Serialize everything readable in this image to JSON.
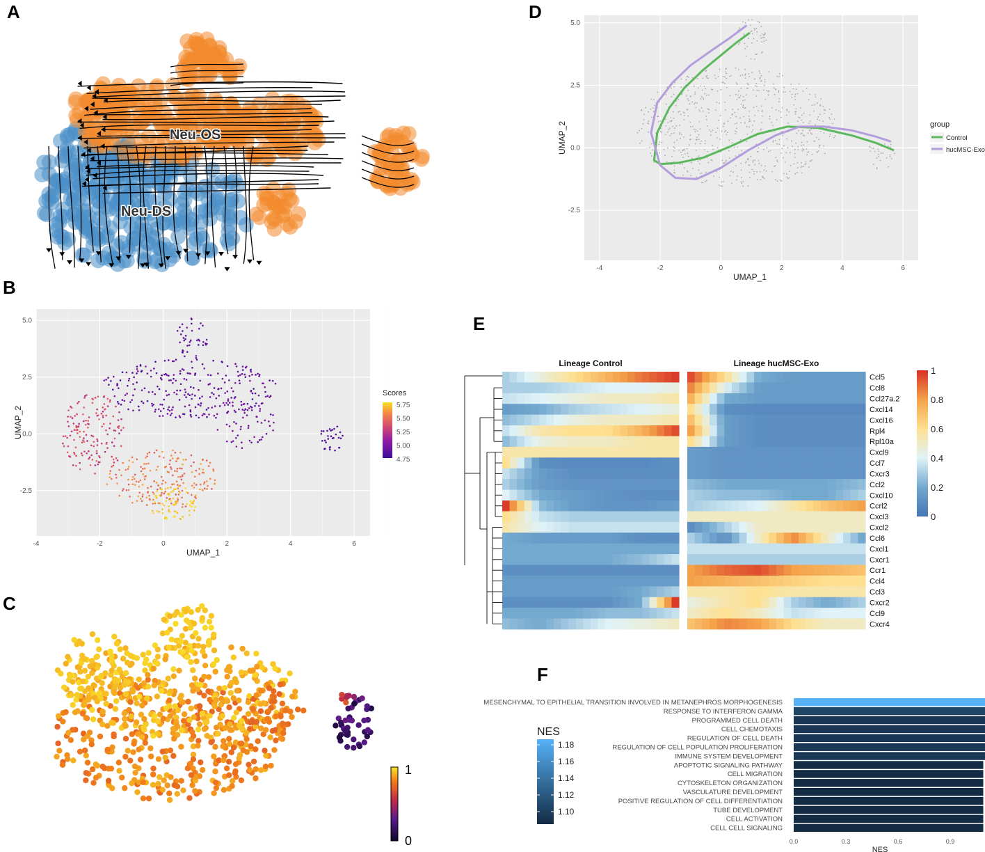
{
  "panel_labels": [
    "A",
    "B",
    "C",
    "D",
    "E",
    "F"
  ],
  "chart_data": [
    {
      "panel": "A",
      "type": "scatter",
      "title": "",
      "annotations": [
        "Neu-OS",
        "Neu-DS"
      ],
      "colors": {
        "Neu-OS": "#f28a2e",
        "Neu-DS": "#4a90c8"
      }
    },
    {
      "panel": "B",
      "type": "scatter",
      "xlabel": "UMAP_1",
      "ylabel": "UMAP_2",
      "xlim": [
        -4,
        6.5
      ],
      "ylim": [
        -4.5,
        5.5
      ],
      "xticks": [
        "-4",
        "-2",
        "0",
        "2",
        "4",
        "6"
      ],
      "yticks": [
        "5.0",
        "2.5",
        "0.0",
        "-2.5"
      ],
      "legend_title": "Scores",
      "legend_ticks": [
        "5.75",
        "5.50",
        "5.25",
        "5.00",
        "4.75"
      ],
      "score_range": [
        4.75,
        5.75
      ]
    },
    {
      "panel": "C",
      "type": "scatter",
      "colorbar_ticks": [
        "1",
        "0"
      ],
      "value_range": [
        0,
        1
      ]
    },
    {
      "panel": "D",
      "type": "line",
      "xlabel": "UMAP_1",
      "ylabel": "UMAP_2",
      "xlim": [
        -4.5,
        6.5
      ],
      "ylim": [
        -4.5,
        5.3
      ],
      "xticks": [
        "-4",
        "-2",
        "0",
        "2",
        "4",
        "6"
      ],
      "yticks": [
        "5.0",
        "2.5",
        "0.0",
        "-2.5"
      ],
      "legend_title": "group",
      "series": [
        {
          "name": "Control",
          "color": "#5cb85c",
          "x": [
            0.95,
            0.5,
            0,
            -0.6,
            -1.2,
            -1.7,
            -2.1,
            -2.2,
            -2.0,
            -1.4,
            -0.6,
            0.3,
            1.2,
            2.2,
            3.2,
            4.3,
            5.1,
            5.7
          ],
          "y": [
            4.6,
            4.2,
            3.7,
            3.1,
            2.4,
            1.6,
            0.6,
            -0.5,
            -0.65,
            -0.6,
            -0.4,
            0.05,
            0.55,
            0.85,
            0.8,
            0.5,
            0.2,
            -0.1
          ]
        },
        {
          "name": "hucMSC-Exo",
          "color": "#b39ddb",
          "x": [
            0.85,
            0.3,
            -0.3,
            -1.0,
            -1.6,
            -2.1,
            -2.3,
            -2.0,
            -1.5,
            -0.8,
            0,
            0.9,
            1.8,
            2.6,
            3.4,
            4.3,
            5.1,
            5.6
          ],
          "y": [
            4.9,
            4.4,
            3.9,
            3.3,
            2.6,
            1.8,
            0.6,
            -0.7,
            -1.2,
            -1.25,
            -0.8,
            -0.1,
            0.5,
            0.85,
            0.85,
            0.7,
            0.45,
            0.25
          ]
        }
      ]
    },
    {
      "panel": "E",
      "type": "heatmap",
      "column_groups": [
        "Lineage  Control",
        "Lineage  hucMSC-Exo"
      ],
      "rows": [
        "Ccl5",
        "Ccl8",
        "Ccl27a.2",
        "Cxcl14",
        "Cxcl16",
        "Rpl4",
        "Rpl10a",
        "Cxcl9",
        "Ccl7",
        "Cxcr3",
        "Ccl2",
        "Cxcl10",
        "Ccrl2",
        "Cxcl3",
        "Cxcl2",
        "Ccl6",
        "Cxcl1",
        "Cxcr1",
        "Ccr1",
        "Ccl4",
        "Ccl3",
        "Cxcr2",
        "Ccl9",
        "Cxcr4"
      ],
      "colorbar_ticks": [
        "1",
        "0.8",
        "0.6",
        "0.4",
        "0.2",
        "0"
      ],
      "value_range": [
        0,
        1
      ],
      "control": [
        [
          0.3,
          0.45,
          0.6,
          0.75,
          0.88,
          0.98
        ],
        [
          0.3,
          0.3,
          0.35,
          0.4,
          0.4,
          0.45
        ],
        [
          0.35,
          0.4,
          0.45,
          0.5,
          0.5,
          0.55
        ],
        [
          0.15,
          0.2,
          0.3,
          0.35,
          0.4,
          0.45
        ],
        [
          0.25,
          0.35,
          0.45,
          0.5,
          0.5,
          0.55
        ],
        [
          0.35,
          0.55,
          0.6,
          0.6,
          0.75,
          0.95
        ],
        [
          0.25,
          0.45,
          0.5,
          0.5,
          0.55,
          0.55
        ],
        [
          0.55,
          0.55,
          0.55,
          0.55,
          0.55,
          0.55
        ],
        [
          0.6,
          0.1,
          0.08,
          0.08,
          0.08,
          0.1
        ],
        [
          0.35,
          0.15,
          0.1,
          0.1,
          0.1,
          0.1
        ],
        [
          0.3,
          0.15,
          0.12,
          0.12,
          0.12,
          0.12
        ],
        [
          0.4,
          0.2,
          0.15,
          0.12,
          0.1,
          0.1
        ],
        [
          0.98,
          0.25,
          0.15,
          0.12,
          0.12,
          0.15
        ],
        [
          0.6,
          0.35,
          0.3,
          0.3,
          0.3,
          0.3
        ],
        [
          0.55,
          0.4,
          0.35,
          0.35,
          0.35,
          0.35
        ],
        [
          0.2,
          0.15,
          0.15,
          0.15,
          0.1,
          0.1
        ],
        [
          0.2,
          0.2,
          0.2,
          0.2,
          0.2,
          0.2
        ],
        [
          0.2,
          0.2,
          0.2,
          0.2,
          0.25,
          0.35
        ],
        [
          0.1,
          0.1,
          0.1,
          0.1,
          0.1,
          0.1
        ],
        [
          0.15,
          0.15,
          0.15,
          0.15,
          0.15,
          0.15
        ],
        [
          0.15,
          0.15,
          0.15,
          0.15,
          0.2,
          0.3
        ],
        [
          0.1,
          0.1,
          0.1,
          0.1,
          0.2,
          0.98
        ],
        [
          0.2,
          0.2,
          0.2,
          0.25,
          0.25,
          0.35
        ],
        [
          0.25,
          0.2,
          0.3,
          0.4,
          0.45,
          0.5
        ]
      ],
      "treatment": [
        [
          0.95,
          0.6,
          0.2,
          0.15,
          0.15,
          0.15
        ],
        [
          0.85,
          0.4,
          0.15,
          0.15,
          0.15,
          0.15
        ],
        [
          0.75,
          0.2,
          0.15,
          0.15,
          0.15,
          0.15
        ],
        [
          0.6,
          0.1,
          0.08,
          0.08,
          0.08,
          0.08
        ],
        [
          0.7,
          0.15,
          0.1,
          0.1,
          0.1,
          0.1
        ],
        [
          0.8,
          0.15,
          0.1,
          0.1,
          0.1,
          0.1
        ],
        [
          0.6,
          0.15,
          0.1,
          0.1,
          0.1,
          0.1
        ],
        [
          0.15,
          0.12,
          0.12,
          0.12,
          0.12,
          0.12
        ],
        [
          0.15,
          0.12,
          0.12,
          0.12,
          0.12,
          0.12
        ],
        [
          0.15,
          0.12,
          0.12,
          0.12,
          0.12,
          0.12
        ],
        [
          0.25,
          0.2,
          0.2,
          0.2,
          0.2,
          0.25
        ],
        [
          0.3,
          0.25,
          0.25,
          0.2,
          0.2,
          0.3
        ],
        [
          0.3,
          0.35,
          0.4,
          0.55,
          0.7,
          0.8
        ],
        [
          0.5,
          0.5,
          0.5,
          0.5,
          0.5,
          0.5
        ],
        [
          0.1,
          0.3,
          0.5,
          0.5,
          0.5,
          0.5
        ],
        [
          0.3,
          0.1,
          0.5,
          0.85,
          0.5,
          0.2
        ],
        [
          0.35,
          0.35,
          0.35,
          0.35,
          0.35,
          0.35
        ],
        [
          0.3,
          0.3,
          0.3,
          0.3,
          0.3,
          0.3
        ],
        [
          0.8,
          0.9,
          0.95,
          0.8,
          0.75,
          0.7
        ],
        [
          0.8,
          0.75,
          0.7,
          0.65,
          0.6,
          0.6
        ],
        [
          0.55,
          0.55,
          0.6,
          0.55,
          0.55,
          0.55
        ],
        [
          0.45,
          0.55,
          0.6,
          0.3,
          0.2,
          0.3
        ],
        [
          0.5,
          0.6,
          0.5,
          0.35,
          0.4,
          0.4
        ],
        [
          0.7,
          0.85,
          0.8,
          0.6,
          0.5,
          0.5
        ]
      ]
    },
    {
      "panel": "F",
      "type": "bar",
      "orientation": "horizontal",
      "xlabel": "NES",
      "xticks": [
        "0.0",
        "0.3",
        "0.6",
        "0.9"
      ],
      "xlim": [
        0,
        1.2
      ],
      "legend_title": "NES",
      "legend_ticks": [
        "1.18",
        "1.16",
        "1.14",
        "1.12",
        "1.10"
      ],
      "categories": [
        "MESENCHYMAL TO EPITHELIAL TRANSITION INVOLVED IN METANEPHROS MORPHOGENESIS",
        "RESPONSE TO INTERFERON GAMMA",
        "PROGRAMMED CELL DEATH",
        "CELL CHEMOTAXIS",
        "REGULATION OF CELL DEATH",
        "REGULATION OF CELL POPULATION PROLIFERATION",
        "IMMUNE SYSTEM DEVELOPMENT",
        "APOPTOTIC SIGNALING PATHWAY",
        "CELL MIGRATION",
        "CYTOSKELETON ORGANIZATION",
        "VASCULATURE DEVELOPMENT",
        "POSITIVE REGULATION OF CELL DIFFERENTIATION",
        "TUBE DEVELOPMENT",
        "CELL ACTIVATION",
        "CELL CELL SIGNALING"
      ],
      "values": [
        1.19,
        1.11,
        1.1,
        1.1,
        1.1,
        1.1,
        1.1,
        1.09,
        1.09,
        1.09,
        1.09,
        1.09,
        1.09,
        1.09,
        1.09
      ]
    }
  ]
}
